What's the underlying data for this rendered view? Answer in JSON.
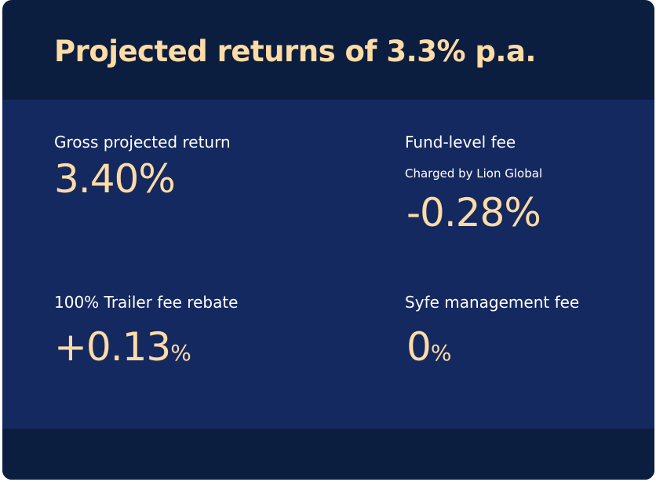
{
  "header": {
    "title": "Projected returns of 3.3% p.a."
  },
  "metrics": {
    "gross_return": {
      "label": "Gross projected return",
      "value": "3.40%"
    },
    "fund_fee": {
      "label": "Fund-level fee",
      "sublabel": "Charged by Lion Global",
      "value": "-0.28%"
    },
    "trailer_rebate": {
      "label": "100% Trailer fee rebate",
      "value": "+0.13",
      "unit": "%"
    },
    "syfe_fee": {
      "label": "Syfe management fee",
      "value": "0",
      "unit": "%"
    }
  },
  "colors": {
    "header_bg": "#0c1e3f",
    "panel_bg": "#142960",
    "accent": "#ffdba6",
    "text": "#ffffff"
  }
}
